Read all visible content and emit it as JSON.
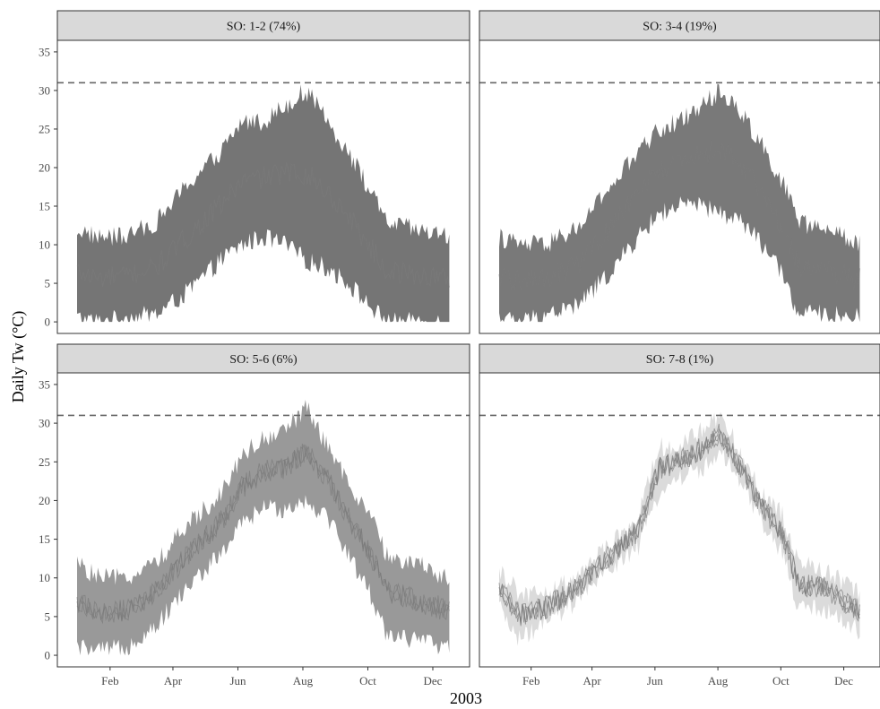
{
  "chart_data": {
    "type": "area",
    "layout": "facet-grid-2x2",
    "xlabel": "2003",
    "ylabel": "Daily Tw (°C)",
    "x_ticks": [
      "Feb",
      "Apr",
      "Jun",
      "Aug",
      "Oct",
      "Dec"
    ],
    "x_tick_positions_day": [
      46,
      105,
      166,
      227,
      288,
      349
    ],
    "x_range_day": [
      15,
      365
    ],
    "ylim": [
      -1.5,
      36.5
    ],
    "y_ticks": [
      0,
      5,
      10,
      15,
      20,
      25,
      30,
      35
    ],
    "reference_line": {
      "y": 31,
      "style": "dashed"
    },
    "grid": false,
    "colors": {
      "band": "#6e6e6e",
      "strip_bg": "#d9d9d9",
      "ref_line": "#666666"
    },
    "panels": [
      {
        "label": "SO: 1-2 (74%)",
        "band_opacity": 0.95,
        "lines": 1,
        "x": [
          15,
          35,
          60,
          90,
          120,
          150,
          170,
          190,
          210,
          230,
          250,
          270,
          290,
          305,
          330,
          365
        ],
        "lower": [
          0.5,
          0,
          0.5,
          1,
          4,
          8,
          10,
          11,
          10,
          8,
          7,
          5,
          2,
          0,
          0,
          0
        ],
        "upper": [
          12,
          11,
          11,
          13,
          18,
          22,
          26,
          26,
          28,
          30,
          26,
          22,
          17,
          13,
          12,
          11
        ]
      },
      {
        "label": "SO: 3-4 (19%)",
        "band_opacity": 0.92,
        "lines": 1,
        "x": [
          15,
          35,
          60,
          90,
          120,
          150,
          170,
          190,
          210,
          230,
          250,
          270,
          290,
          305,
          330,
          365
        ],
        "lower": [
          0.5,
          0,
          1,
          2,
          6,
          11,
          14,
          15,
          15,
          14,
          13,
          10,
          6,
          1,
          1,
          0.5
        ],
        "upper": [
          11,
          10,
          10,
          12,
          17,
          22,
          25,
          26,
          28,
          30,
          27,
          23,
          18,
          13,
          12,
          10
        ]
      },
      {
        "label": "SO: 5-6 (6%)",
        "band_opacity": 0.7,
        "lines": 3,
        "x": [
          15,
          35,
          60,
          90,
          120,
          150,
          170,
          190,
          210,
          230,
          250,
          270,
          290,
          305,
          330,
          365
        ],
        "lower": [
          1,
          0.5,
          1,
          4,
          9,
          13,
          17,
          19,
          19,
          20,
          18,
          13,
          8,
          3,
          2,
          1
        ],
        "upper": [
          12,
          10,
          10,
          12,
          17,
          21,
          26,
          28,
          29,
          32,
          27,
          22,
          18,
          13,
          12,
          10
        ]
      },
      {
        "label": "SO: 7-8 (1%)",
        "band_opacity": 0.25,
        "lines": 4,
        "x": [
          15,
          35,
          60,
          90,
          120,
          150,
          170,
          190,
          210,
          230,
          250,
          270,
          290,
          305,
          330,
          365
        ],
        "lower": [
          6,
          2,
          4,
          7,
          11,
          14,
          21,
          23,
          24,
          26,
          22,
          17,
          13,
          6,
          6,
          3
        ],
        "upper": [
          11,
          8,
          8,
          10,
          14,
          18,
          27,
          27,
          29,
          31,
          26,
          21,
          18,
          12,
          11,
          8
        ]
      }
    ]
  }
}
